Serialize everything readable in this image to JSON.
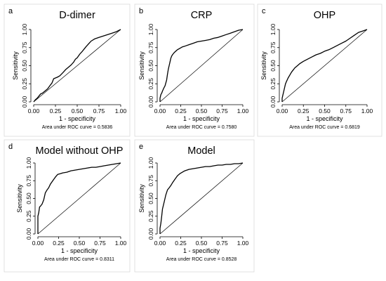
{
  "chart_data": [
    {
      "type": "line",
      "panel": "a",
      "title": "D-dimer",
      "xlabel": "1 - specificity",
      "ylabel": "Sensitivity",
      "xlim": [
        0,
        1
      ],
      "ylim": [
        0,
        1
      ],
      "xticks": [
        "0.00",
        "0.25",
        "0.50",
        "0.75",
        "1.00"
      ],
      "yticks": [
        "0.00",
        "0.25",
        "0.50",
        "0.75",
        "1.00"
      ],
      "caption": "Area under ROC curve = 0.5836",
      "reference_line": true,
      "series": [
        {
          "x": [
            0,
            0.02,
            0.04,
            0.06,
            0.08,
            0.1,
            0.13,
            0.16,
            0.19,
            0.21,
            0.23,
            0.25,
            0.27,
            0.3,
            0.34,
            0.37,
            0.4,
            0.43,
            0.46,
            0.48,
            0.5,
            0.53,
            0.56,
            0.58,
            0.6,
            0.63,
            0.66,
            0.7,
            0.75,
            0.8,
            0.85,
            0.9,
            0.95,
            1.0
          ],
          "y": [
            0,
            0.03,
            0.05,
            0.08,
            0.11,
            0.12,
            0.15,
            0.18,
            0.23,
            0.26,
            0.32,
            0.33,
            0.34,
            0.36,
            0.41,
            0.45,
            0.48,
            0.51,
            0.55,
            0.59,
            0.61,
            0.66,
            0.7,
            0.73,
            0.76,
            0.8,
            0.84,
            0.87,
            0.89,
            0.91,
            0.93,
            0.95,
            0.97,
            1.0
          ]
        }
      ]
    },
    {
      "type": "line",
      "panel": "b",
      "title": "CRP",
      "xlabel": "1 - specificity",
      "ylabel": "Sensitivity",
      "xlim": [
        0,
        1
      ],
      "ylim": [
        0,
        1
      ],
      "xticks": [
        "0.00",
        "0.25",
        "0.50",
        "0.75",
        "1.00"
      ],
      "yticks": [
        "0.00",
        "0.25",
        "0.50",
        "0.75",
        "1.00"
      ],
      "caption": "Area under ROC curve = 0.7580",
      "reference_line": true,
      "series": [
        {
          "x": [
            0,
            0,
            0.01,
            0.02,
            0.03,
            0.05,
            0.06,
            0.08,
            0.09,
            0.1,
            0.11,
            0.12,
            0.13,
            0.14,
            0.15,
            0.17,
            0.19,
            0.21,
            0.24,
            0.27,
            0.3,
            0.35,
            0.4,
            0.45,
            0.5,
            0.55,
            0.6,
            0.65,
            0.7,
            0.75,
            0.8,
            0.85,
            0.9,
            0.95,
            1.0
          ],
          "y": [
            0,
            0.05,
            0.1,
            0.12,
            0.15,
            0.2,
            0.22,
            0.3,
            0.38,
            0.45,
            0.5,
            0.55,
            0.6,
            0.63,
            0.65,
            0.68,
            0.7,
            0.72,
            0.74,
            0.76,
            0.77,
            0.79,
            0.81,
            0.83,
            0.84,
            0.85,
            0.86,
            0.88,
            0.89,
            0.91,
            0.93,
            0.95,
            0.97,
            0.99,
            1.0
          ]
        }
      ]
    },
    {
      "type": "line",
      "panel": "c",
      "title": "OHP",
      "xlabel": "1 - specificity",
      "ylabel": "Sensitivity",
      "xlim": [
        0,
        1
      ],
      "ylim": [
        0,
        1
      ],
      "xticks": [
        "0.00",
        "0.25",
        "0.50",
        "0.75",
        "1.00"
      ],
      "yticks": [
        "0.00",
        "0.25",
        "0.50",
        "0.75",
        "1.00"
      ],
      "caption": "Area under ROC curve = 0.6819",
      "reference_line": true,
      "series": [
        {
          "x": [
            0,
            0,
            0.01,
            0.02,
            0.03,
            0.04,
            0.05,
            0.07,
            0.09,
            0.11,
            0.13,
            0.15,
            0.18,
            0.21,
            0.25,
            0.3,
            0.35,
            0.4,
            0.45,
            0.5,
            0.55,
            0.6,
            0.65,
            0.7,
            0.75,
            0.8,
            0.85,
            0.9,
            0.95,
            1.0
          ],
          "y": [
            0,
            0.05,
            0.1,
            0.15,
            0.2,
            0.25,
            0.28,
            0.33,
            0.37,
            0.41,
            0.44,
            0.47,
            0.5,
            0.53,
            0.56,
            0.59,
            0.62,
            0.65,
            0.67,
            0.7,
            0.72,
            0.75,
            0.78,
            0.81,
            0.84,
            0.88,
            0.92,
            0.96,
            0.98,
            1.0
          ]
        }
      ]
    },
    {
      "type": "line",
      "panel": "d",
      "title": "Model without OHP",
      "xlabel": "1 - specificity",
      "ylabel": "Sensitivity",
      "xlim": [
        0,
        1
      ],
      "ylim": [
        0,
        1
      ],
      "xticks": [
        "0.00",
        "0.25",
        "0.50",
        "0.75",
        "1.00"
      ],
      "yticks": [
        "0.00",
        "0.25",
        "0.50",
        "0.75",
        "1.00"
      ],
      "caption": "Area under ROC curve = 0.8311",
      "reference_line": true,
      "series": [
        {
          "x": [
            0,
            0,
            0.01,
            0.02,
            0.03,
            0.05,
            0.07,
            0.09,
            0.11,
            0.13,
            0.15,
            0.18,
            0.21,
            0.24,
            0.27,
            0.3,
            0.35,
            0.4,
            0.45,
            0.5,
            0.55,
            0.6,
            0.65,
            0.7,
            0.75,
            0.8,
            0.85,
            0.9,
            0.95,
            1.0
          ],
          "y": [
            0,
            0.25,
            0.3,
            0.38,
            0.39,
            0.42,
            0.48,
            0.58,
            0.62,
            0.65,
            0.7,
            0.75,
            0.8,
            0.84,
            0.85,
            0.86,
            0.87,
            0.89,
            0.9,
            0.91,
            0.92,
            0.93,
            0.94,
            0.94,
            0.95,
            0.96,
            0.97,
            0.98,
            0.99,
            1.0
          ]
        }
      ]
    },
    {
      "type": "line",
      "panel": "e",
      "title": "Model",
      "xlabel": "1 - specificity",
      "ylabel": "Sensitivity",
      "xlim": [
        0,
        1
      ],
      "ylim": [
        0,
        1
      ],
      "xticks": [
        "0.00",
        "0.25",
        "0.50",
        "0.75",
        "1.00"
      ],
      "yticks": [
        "0.00",
        "0.25",
        "0.50",
        "0.75",
        "1.00"
      ],
      "caption": "Area under ROC curve = 0.8528",
      "reference_line": true,
      "series": [
        {
          "x": [
            0,
            0,
            0.01,
            0.02,
            0.03,
            0.05,
            0.07,
            0.09,
            0.11,
            0.13,
            0.15,
            0.18,
            0.21,
            0.24,
            0.27,
            0.3,
            0.35,
            0.4,
            0.45,
            0.5,
            0.55,
            0.6,
            0.65,
            0.7,
            0.75,
            0.8,
            0.85,
            0.9,
            0.95,
            1.0
          ],
          "y": [
            0,
            0.08,
            0.15,
            0.25,
            0.35,
            0.45,
            0.55,
            0.62,
            0.65,
            0.68,
            0.72,
            0.77,
            0.82,
            0.85,
            0.87,
            0.89,
            0.91,
            0.92,
            0.93,
            0.94,
            0.95,
            0.95,
            0.96,
            0.97,
            0.97,
            0.98,
            0.98,
            0.99,
            0.99,
            1.0
          ]
        }
      ]
    }
  ]
}
